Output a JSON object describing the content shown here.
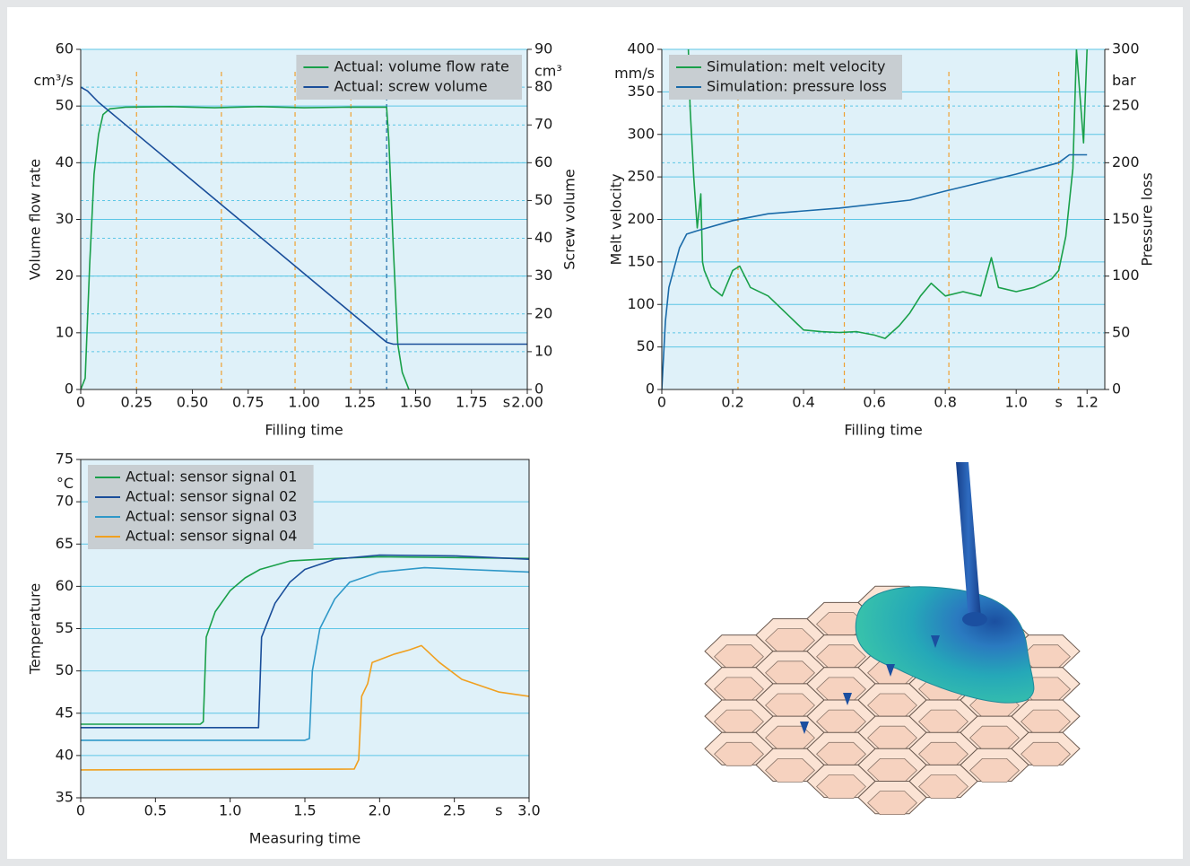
{
  "chart_data": [
    {
      "type": "line",
      "x_label": "Filling time",
      "y_label": "Volume flow rate",
      "y2_label": "Screw volume",
      "y_unit": "cm³/s",
      "y2_unit": "cm³",
      "x_unit": "s",
      "xlim": [
        0,
        2
      ],
      "xticks": [
        0,
        0.25,
        {
          "value": 0.5,
          "label": "0.50"
        },
        0.75,
        {
          "value": 1,
          "label": "1.00"
        },
        1.25,
        {
          "value": 1.5,
          "label": "1.50"
        },
        1.75,
        {
          "value": 2,
          "label": "2.00"
        }
      ],
      "ylim": [
        0,
        60
      ],
      "yticks": [
        0,
        10,
        20,
        30,
        40,
        50,
        60
      ],
      "y2lim": [
        0,
        90
      ],
      "y2ticks": [
        0,
        10,
        20,
        30,
        40,
        50,
        60,
        70,
        80,
        90
      ],
      "grid": true,
      "legend": "upper right",
      "markers": [
        {
          "x": 0.25,
          "color": "#f0a030"
        },
        {
          "x": 0.63,
          "color": "#f0a030"
        },
        {
          "x": 0.96,
          "color": "#f0a030"
        },
        {
          "x": 1.21,
          "color": "#f0a030"
        },
        {
          "x": 1.37,
          "color": "#1a6aa8"
        }
      ],
      "series": [
        {
          "name": "Actual: volume flow rate",
          "color": "#1aa04a",
          "x": [
            0,
            0.02,
            0.04,
            0.06,
            0.08,
            0.1,
            0.13,
            0.2,
            0.4,
            0.6,
            0.8,
            1.0,
            1.2,
            1.37,
            1.38,
            1.4,
            1.42,
            1.44,
            1.47
          ],
          "values": [
            0,
            2,
            22,
            38,
            45,
            48.5,
            49.5,
            49.8,
            49.9,
            49.7,
            49.9,
            49.7,
            49.8,
            49.8,
            44,
            25,
            8,
            3,
            0
          ]
        },
        {
          "name": "Actual: screw volume",
          "color": "#1a4e9a",
          "axis": "y2",
          "x": [
            0,
            0.03,
            0.08,
            1.37,
            1.4,
            2
          ],
          "values": [
            80,
            79,
            76,
            12.5,
            12,
            12
          ]
        }
      ]
    },
    {
      "type": "line",
      "x_label": "Filling time",
      "y_label": "Melt velocity",
      "y2_label": "Pressure loss",
      "y_unit": "mm/s",
      "y2_unit": "bar",
      "x_unit": "s",
      "xlim": [
        0,
        1.25
      ],
      "xticks": [
        0,
        0.2,
        0.4,
        0.6,
        0.8,
        {
          "value": 1,
          "label": "1.0"
        },
        1.2
      ],
      "ylim": [
        0,
        400
      ],
      "yticks": [
        0,
        50,
        100,
        150,
        200,
        250,
        300,
        350,
        400
      ],
      "y2lim": [
        0,
        300
      ],
      "y2ticks": [
        0,
        50,
        100,
        150,
        200,
        250,
        300
      ],
      "grid": true,
      "legend": "upper left",
      "markers": [
        {
          "x": 0.215,
          "color": "#f0a030"
        },
        {
          "x": 0.515,
          "color": "#f0a030"
        },
        {
          "x": 0.81,
          "color": "#f0a030"
        },
        {
          "x": 1.12,
          "color": "#f0a030"
        }
      ],
      "series": [
        {
          "name": "Simulation: melt velocity",
          "color": "#1aa04a",
          "x": [
            0.075,
            0.08,
            0.09,
            0.1,
            0.11,
            0.115,
            0.12,
            0.14,
            0.17,
            0.2,
            0.22,
            0.25,
            0.3,
            0.35,
            0.4,
            0.45,
            0.5,
            0.55,
            0.6,
            0.63,
            0.67,
            0.7,
            0.73,
            0.76,
            0.8,
            0.85,
            0.9,
            0.93,
            0.95,
            1.0,
            1.05,
            1.1,
            1.12,
            1.14,
            1.16,
            1.17,
            1.19,
            1.2
          ],
          "values": [
            400,
            330,
            250,
            190,
            230,
            150,
            140,
            120,
            110,
            140,
            145,
            120,
            110,
            90,
            70,
            68,
            67,
            68,
            64,
            60,
            75,
            90,
            110,
            125,
            110,
            115,
            110,
            155,
            120,
            115,
            120,
            130,
            140,
            180,
            260,
            400,
            290,
            400
          ]
        },
        {
          "name": "Simulation: pressure loss",
          "color": "#1a6aa8",
          "axis": "y2",
          "x": [
            0,
            0.01,
            0.02,
            0.05,
            0.07,
            0.1,
            0.2,
            0.3,
            0.5,
            0.7,
            0.8,
            1.0,
            1.12,
            1.15,
            1.2
          ],
          "values": [
            0,
            60,
            90,
            125,
            137,
            140,
            149,
            155,
            160,
            167,
            175,
            190,
            200,
            207,
            207
          ]
        }
      ]
    },
    {
      "type": "line",
      "x_label": "Measuring time",
      "y_label": "Temperature",
      "y_unit": "°C",
      "x_unit": "s",
      "xlim": [
        0,
        3
      ],
      "xticks": [
        0,
        0.5,
        {
          "value": 1,
          "label": "1.0"
        },
        1.5,
        {
          "value": 2,
          "label": "2.0"
        },
        2.5,
        {
          "value": 3,
          "label": "3.0"
        }
      ],
      "ylim": [
        35,
        75
      ],
      "yticks": [
        35,
        40,
        45,
        50,
        55,
        60,
        65,
        70,
        75
      ],
      "grid": true,
      "legend": "upper left",
      "series": [
        {
          "name": "Actual: sensor signal 01",
          "color": "#1aa04a",
          "x": [
            0,
            0.8,
            0.82,
            0.84,
            0.9,
            1.0,
            1.1,
            1.2,
            1.4,
            1.7,
            2.0,
            3.0
          ],
          "values": [
            43.7,
            43.7,
            44,
            54,
            57,
            59.5,
            61,
            62,
            63,
            63.3,
            63.5,
            63.3
          ]
        },
        {
          "name": "Actual: sensor signal 02",
          "color": "#1a4e9a",
          "x": [
            0,
            1.19,
            1.21,
            1.3,
            1.4,
            1.5,
            1.7,
            2.0,
            2.5,
            3.0
          ],
          "values": [
            43.3,
            43.3,
            54,
            58,
            60.5,
            62,
            63.2,
            63.7,
            63.6,
            63.2
          ]
        },
        {
          "name": "Actual: sensor signal 03",
          "color": "#2f98c8",
          "x": [
            0,
            1.5,
            1.53,
            1.55,
            1.6,
            1.7,
            1.8,
            2.0,
            2.3,
            3.0
          ],
          "values": [
            41.8,
            41.8,
            42,
            50,
            55,
            58.5,
            60.5,
            61.7,
            62.2,
            61.7
          ]
        },
        {
          "name": "Actual: sensor signal 04",
          "color": "#f0a020",
          "x": [
            0,
            1.83,
            1.86,
            1.88,
            1.92,
            1.95,
            2.1,
            2.2,
            2.28,
            2.4,
            2.55,
            2.8,
            3.0
          ],
          "values": [
            38.3,
            38.4,
            39.5,
            47,
            48.5,
            51,
            52,
            52.5,
            53,
            51,
            49,
            47.5,
            47
          ]
        }
      ]
    }
  ]
}
